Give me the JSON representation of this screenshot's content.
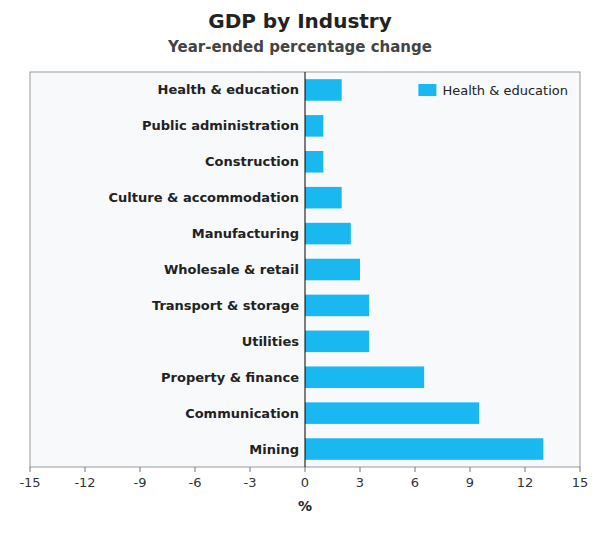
{
  "chart_data": {
    "type": "bar",
    "orientation": "horizontal",
    "title": "GDP by Industry",
    "subtitle": "Year-ended percentage change",
    "categories": [
      "Mining",
      "Communication",
      "Property & finance",
      "Utilities",
      "Transport & storage",
      "Wholesale & retail",
      "Manufacturing",
      "Culture & accommodation",
      "Construction",
      "Public administration",
      "Health & education"
    ],
    "series": [
      {
        "name": "Health & education",
        "color": "#1ab8f0",
        "values": [
          13.0,
          9.5,
          6.5,
          3.5,
          3.5,
          3.0,
          2.5,
          2.0,
          1.0,
          1.0,
          2.0
        ]
      }
    ],
    "xlim": [
      -15,
      15
    ],
    "xticks": [
      -15,
      -12,
      -9,
      -6,
      -3,
      0,
      3,
      6,
      9,
      12,
      15
    ],
    "xlabel": "%",
    "grid": false,
    "legend": "upper right"
  }
}
